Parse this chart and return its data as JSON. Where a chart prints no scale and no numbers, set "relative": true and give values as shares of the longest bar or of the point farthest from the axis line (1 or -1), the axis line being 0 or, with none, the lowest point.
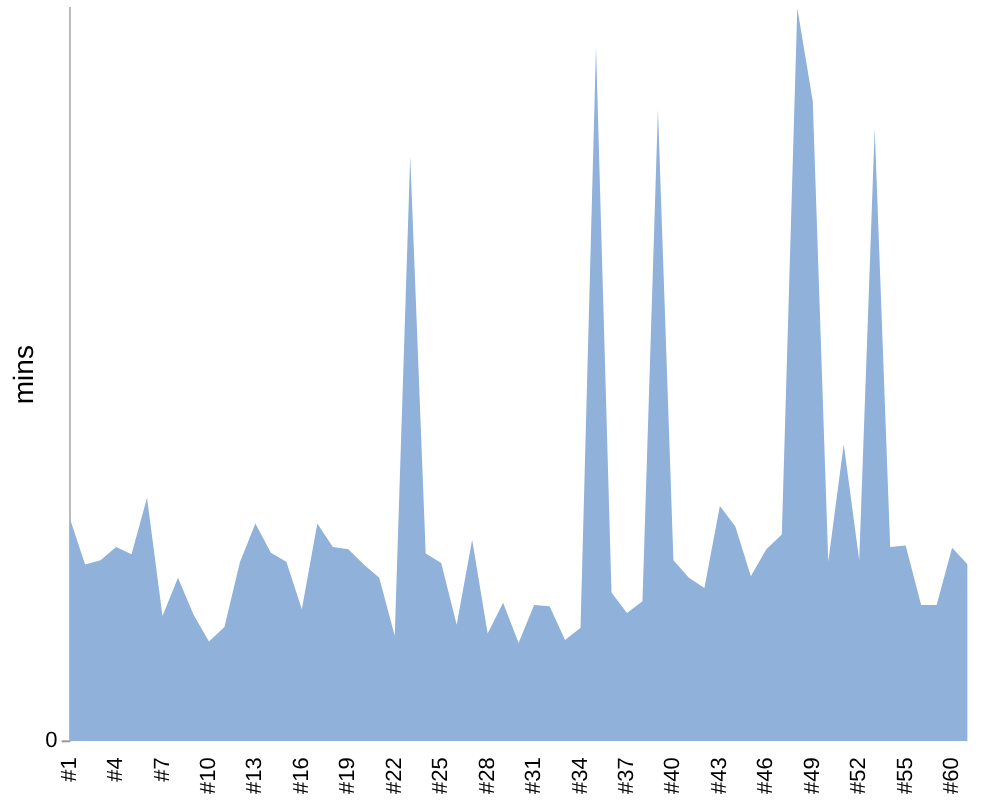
{
  "chart_data": {
    "type": "area",
    "relative": true,
    "ylabel": "mins",
    "annotations": [
      "0"
    ],
    "categories": [
      "#1",
      null,
      null,
      "#4",
      null,
      null,
      "#7",
      null,
      null,
      "#10",
      null,
      null,
      "#13",
      null,
      null,
      "#16",
      null,
      null,
      "#19",
      null,
      null,
      "#22",
      null,
      null,
      "#25",
      null,
      null,
      "#28",
      null,
      null,
      "#31",
      null,
      null,
      "#34",
      null,
      null,
      "#37",
      null,
      null,
      "#40",
      null,
      null,
      "#43",
      null,
      null,
      "#46",
      null,
      null,
      "#49",
      null,
      null,
      "#52",
      null,
      null,
      "#55",
      null,
      null,
      "#60",
      null
    ],
    "series": [
      {
        "color": "#8fb1da",
        "values": [
          0.305,
          0.241,
          0.247,
          0.265,
          0.255,
          0.332,
          0.171,
          0.223,
          0.173,
          0.136,
          0.156,
          0.244,
          0.297,
          0.257,
          0.245,
          0.18,
          0.297,
          0.265,
          0.262,
          0.241,
          0.223,
          0.144,
          0.798,
          0.256,
          0.243,
          0.159,
          0.275,
          0.147,
          0.189,
          0.134,
          0.186,
          0.184,
          0.138,
          0.155,
          0.947,
          0.203,
          0.175,
          0.191,
          0.862,
          0.247,
          0.223,
          0.209,
          0.321,
          0.293,
          0.225,
          0.262,
          0.282,
          1,
          0.873,
          0.245,
          0.405,
          0.247,
          0.836,
          0.265,
          0.267,
          0.186,
          0.186,
          0.264,
          0.241
        ]
      }
    ],
    "grid": false,
    "legend": false
  }
}
